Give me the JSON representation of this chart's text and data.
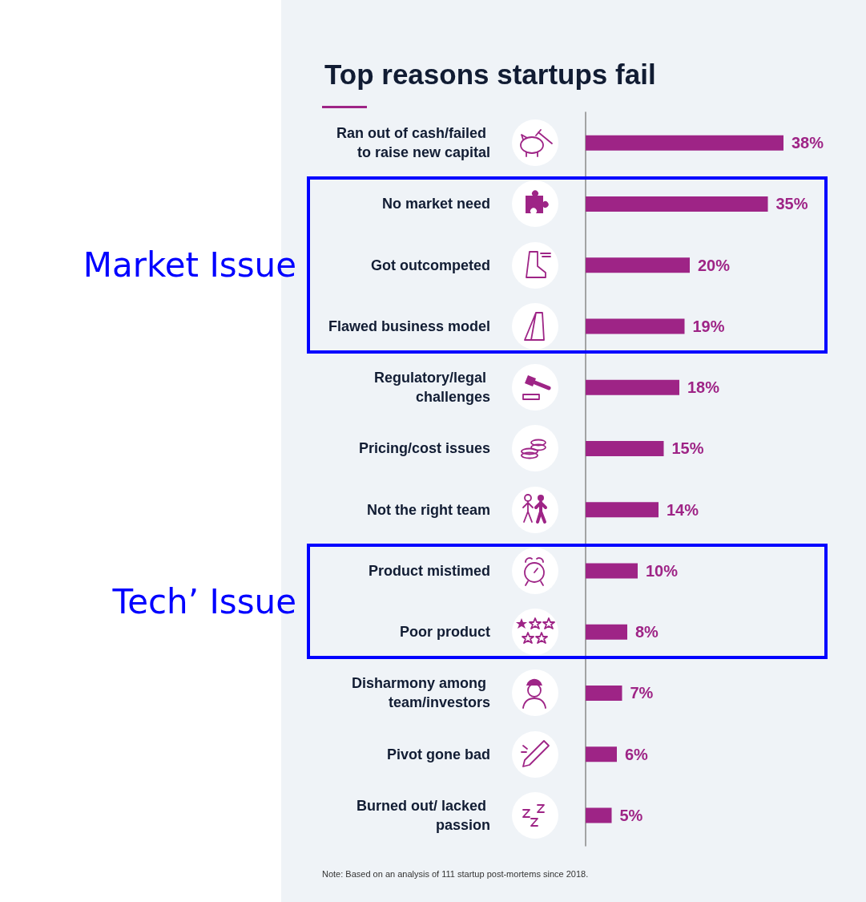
{
  "chart_data": {
    "type": "bar",
    "orientation": "horizontal",
    "title": "Top reasons startups fail",
    "categories": [
      "Ran out of cash/failed to raise new capital",
      "No market need",
      "Got outcompeted",
      "Flawed business model",
      "Regulatory/legal challenges",
      "Pricing/cost issues",
      "Not the right team",
      "Product mistimed",
      "Poor product",
      "Disharmony among team/investors",
      "Pivot gone bad",
      "Burned out/ lacked passion"
    ],
    "values": [
      38,
      35,
      20,
      19,
      18,
      15,
      14,
      10,
      8,
      7,
      6,
      5
    ],
    "value_labels": [
      "38%",
      "35%",
      "20%",
      "19%",
      "18%",
      "15%",
      "14%",
      "10%",
      "8%",
      "7%",
      "6%",
      "5%"
    ],
    "color": "#9e2486",
    "annotations": [
      "Market Issue",
      "Tech’ Issue",
      "Note: Based on an analysis of 111 startup post-mortems since 2018."
    ]
  }
}
